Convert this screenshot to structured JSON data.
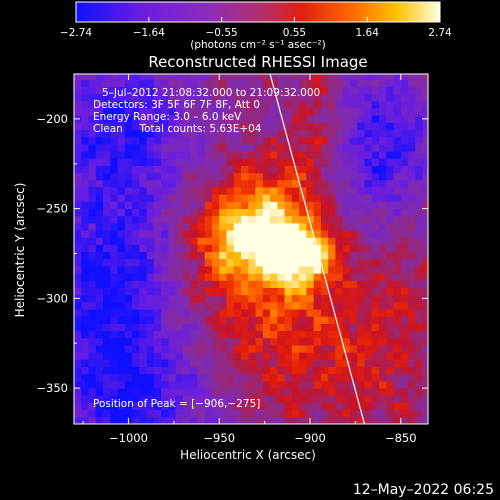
{
  "chart_data": {
    "type": "heatmap",
    "title": "Reconstructed RHESSI Image",
    "xlabel": "Heliocentric X (arcsec)",
    "ylabel": "Heliocentric Y (arcsec)",
    "xlim": [
      -1030,
      -835
    ],
    "ylim": [
      -370,
      -175
    ],
    "xticks": [
      -1000,
      -950,
      -900,
      -850
    ],
    "yticks": [
      -200,
      -250,
      -300,
      -350
    ],
    "xtick_labels": [
      "−1000",
      "−950",
      "−900",
      "−850"
    ],
    "ytick_labels": [
      "−200",
      "−250",
      "−300",
      "−350"
    ],
    "colorbar": {
      "range": [
        -2.74,
        2.74
      ],
      "tick_labels": [
        "−2.74",
        "−1.64",
        "−0.55",
        "0.55",
        "1.64",
        "2.74"
      ],
      "unit_label": "(photons cm⁻² s⁻¹ asec⁻²)"
    },
    "annotations": {
      "time": "5–Jul–2012 21:08:32.000 to 21:09:32.000",
      "detectors": "Detectors: 3F 5F 6F 7F 8F, Att 0",
      "energy": "Energy Range: 3.0 – 6.0 keV",
      "clean": "Clean     Total counts: 5.63E+04",
      "peak": "Position of Peak = [−906,−275]"
    },
    "peak": [
      -906,
      -275
    ],
    "sources": [
      {
        "x": -906,
        "y": -275,
        "amp": 2.7,
        "sx": 13,
        "sy": 11
      },
      {
        "x": -932,
        "y": -263,
        "amp": 2.25,
        "sx": 16,
        "sy": 15
      },
      {
        "x": -920,
        "y": -285,
        "amp": 1.4,
        "sx": 22,
        "sy": 24
      },
      {
        "x": -918,
        "y": -240,
        "amp": 1.1,
        "sx": 18,
        "sy": 20
      },
      {
        "x": -955,
        "y": -270,
        "amp": 0.9,
        "sx": 14,
        "sy": 22
      },
      {
        "x": -895,
        "y": -200,
        "amp": 0.75,
        "sx": 10,
        "sy": 35
      },
      {
        "x": -880,
        "y": -330,
        "amp": 0.85,
        "sx": 30,
        "sy": 40
      },
      {
        "x": -930,
        "y": -330,
        "amp": 0.55,
        "sx": 22,
        "sy": 25
      },
      {
        "x": -850,
        "y": -300,
        "amp": 0.4,
        "sx": 14,
        "sy": 45
      },
      {
        "x": -1010,
        "y": -300,
        "amp": -2.1,
        "sx": 25,
        "sy": 60
      },
      {
        "x": -860,
        "y": -215,
        "amp": -1.8,
        "sx": 20,
        "sy": 30
      },
      {
        "x": -1000,
        "y": -200,
        "amp": -1.4,
        "sx": 25,
        "sy": 25
      },
      {
        "x": -985,
        "y": -360,
        "amp": -1.0,
        "sx": 30,
        "sy": 20
      }
    ],
    "limb_line": [
      [
        -922,
        -175
      ],
      [
        -870,
        -370
      ]
    ],
    "grid": false
  },
  "footer": {
    "timestamp": "12–May–2022 06:25"
  }
}
